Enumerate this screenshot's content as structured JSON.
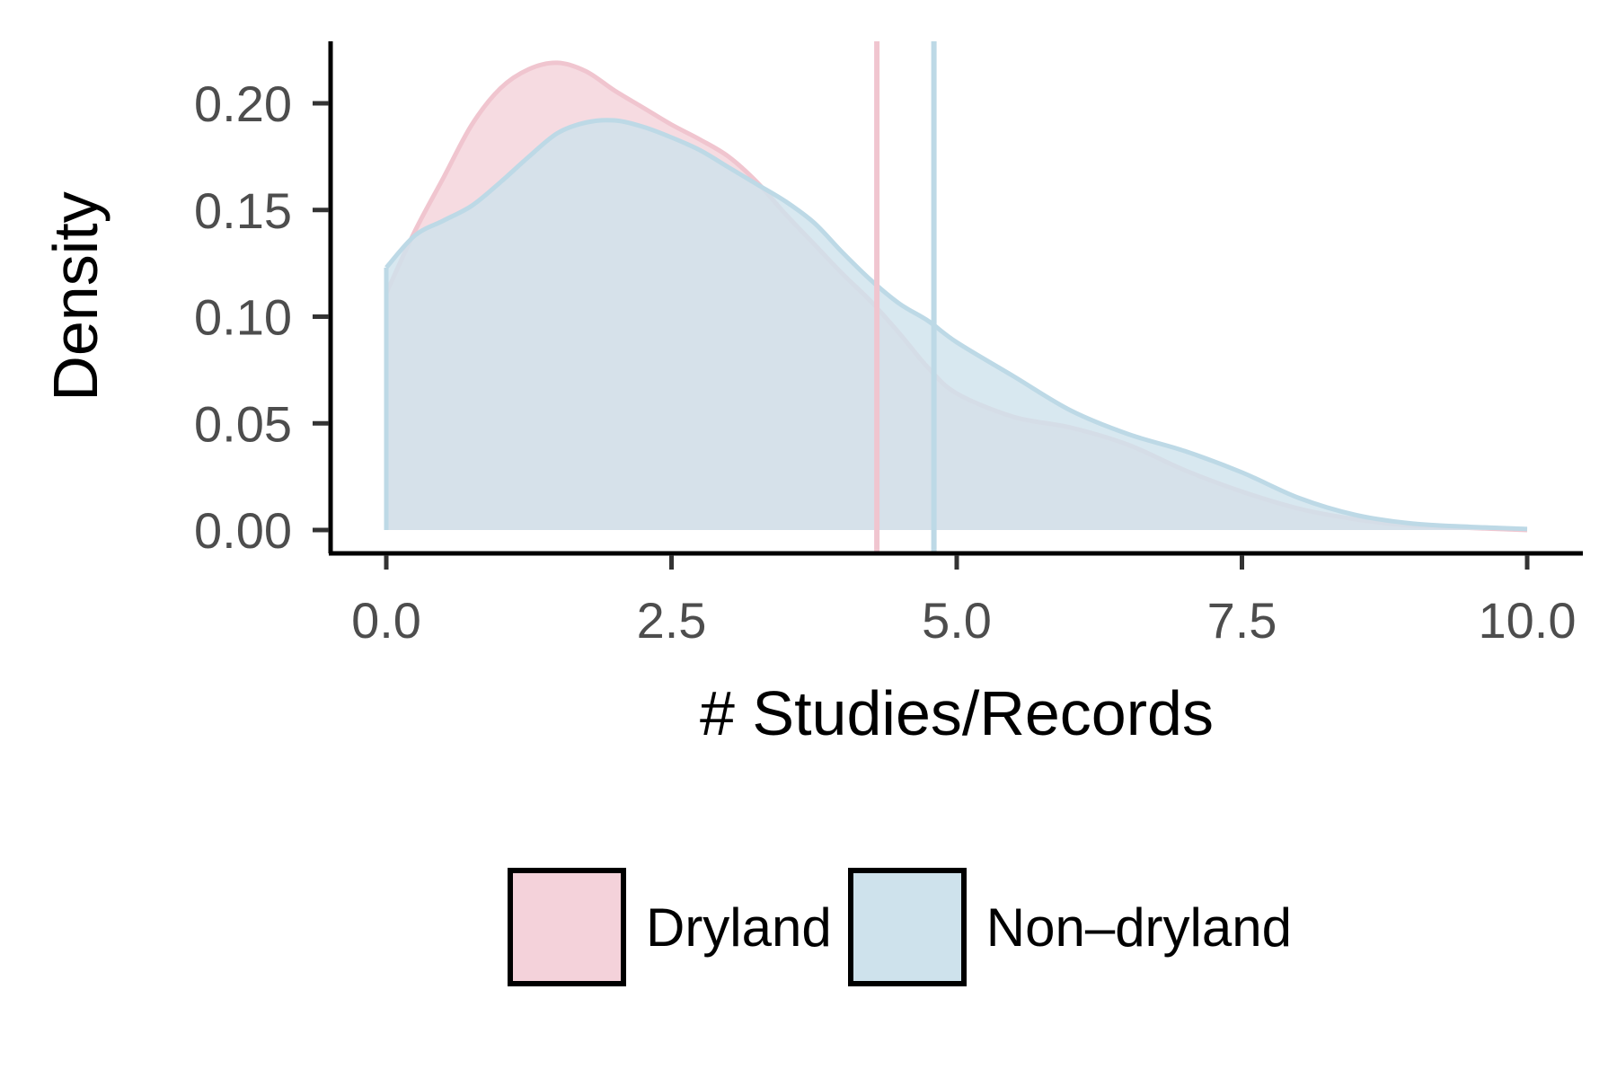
{
  "chart_data": {
    "type": "area",
    "title": "",
    "xlabel": "# Studies/Records",
    "ylabel": "Density",
    "xlim": [
      -0.5,
      10.5
    ],
    "ylim": [
      -0.011,
      0.228
    ],
    "x_ticks": [
      "0.0",
      "2.5",
      "5.0",
      "7.5",
      "10.0"
    ],
    "y_ticks": [
      "0.00",
      "0.05",
      "0.10",
      "0.15",
      "0.20"
    ],
    "legend_position": "bottom",
    "grid": false,
    "series": [
      {
        "name": "Dryland",
        "fill": "#F4D2DA",
        "line": "#F0C5CF",
        "mean": 4.3,
        "x": [
          0.0,
          0.25,
          0.5,
          0.75,
          1.0,
          1.25,
          1.5,
          1.75,
          2.0,
          2.25,
          2.5,
          2.75,
          3.0,
          3.25,
          3.5,
          3.75,
          4.0,
          4.25,
          4.5,
          4.75,
          5.0,
          5.5,
          6.0,
          6.5,
          7.0,
          7.5,
          8.0,
          8.5,
          9.0,
          9.5,
          10.0
        ],
        "values": [
          0.111,
          0.14,
          0.165,
          0.19,
          0.207,
          0.216,
          0.219,
          0.215,
          0.206,
          0.198,
          0.19,
          0.183,
          0.175,
          0.163,
          0.148,
          0.134,
          0.12,
          0.107,
          0.092,
          0.076,
          0.064,
          0.053,
          0.048,
          0.04,
          0.028,
          0.018,
          0.01,
          0.005,
          0.002,
          0.001,
          0.0
        ]
      },
      {
        "name": "Non–dryland",
        "fill": "#CEE2EC",
        "line": "#BDD9E6",
        "mean": 4.8,
        "x": [
          0.0,
          0.25,
          0.5,
          0.75,
          1.0,
          1.25,
          1.5,
          1.75,
          2.0,
          2.25,
          2.5,
          2.75,
          3.0,
          3.25,
          3.5,
          3.75,
          4.0,
          4.25,
          4.5,
          4.75,
          5.0,
          5.5,
          6.0,
          6.5,
          7.0,
          7.5,
          8.0,
          8.5,
          9.0,
          9.5,
          10.0
        ],
        "values": [
          0.123,
          0.138,
          0.145,
          0.152,
          0.163,
          0.175,
          0.186,
          0.191,
          0.192,
          0.189,
          0.184,
          0.178,
          0.17,
          0.162,
          0.154,
          0.144,
          0.13,
          0.117,
          0.106,
          0.098,
          0.088,
          0.072,
          0.056,
          0.045,
          0.037,
          0.027,
          0.015,
          0.007,
          0.003,
          0.0015,
          0.0005
        ]
      }
    ]
  }
}
